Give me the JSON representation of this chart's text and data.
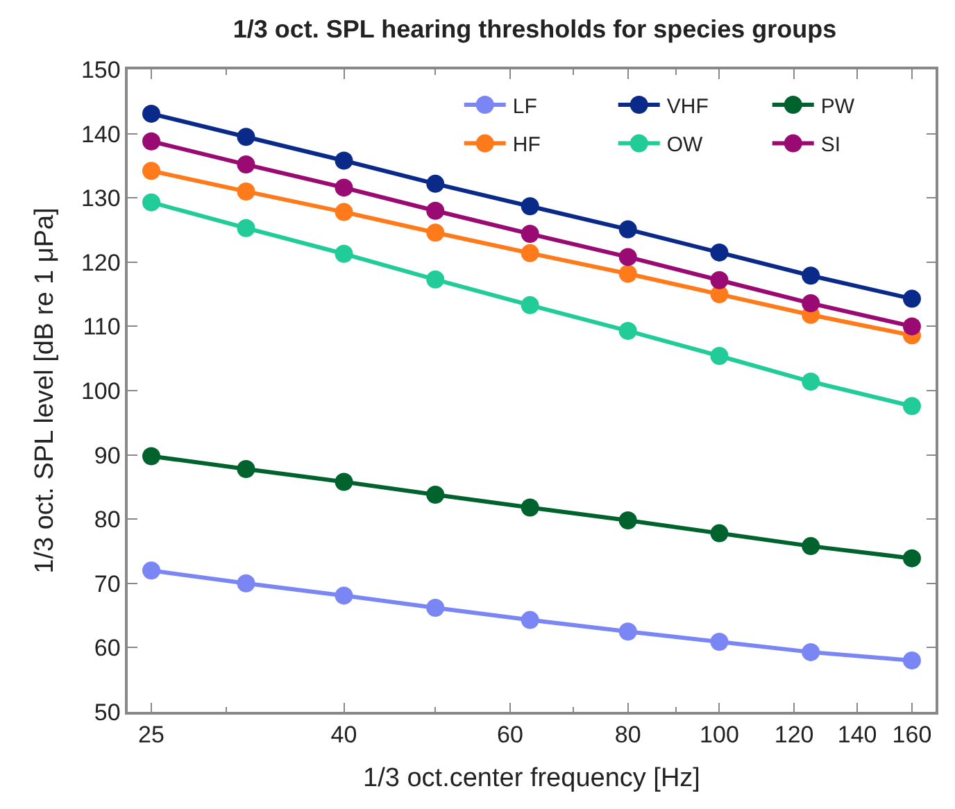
{
  "chart_data": {
    "type": "line",
    "title": "1/3 oct. SPL hearing thresholds for species groups",
    "xlabel": "1/3 oct.center frequency [Hz]",
    "ylabel": "1/3 oct. SPL level [dB re 1 μPa]",
    "x": [
      25,
      31.5,
      40,
      50,
      63,
      80,
      100,
      125,
      160
    ],
    "series": [
      {
        "name": "LF",
        "color": "#7b86f5",
        "values": [
          72,
          70,
          68.1,
          66.2,
          64.3,
          62.5,
          60.9,
          59.3,
          58
        ]
      },
      {
        "name": "VHF",
        "color": "#0a2a8a",
        "values": [
          143.1,
          139.5,
          135.8,
          132.2,
          128.7,
          125.1,
          121.5,
          117.9,
          114.3
        ]
      },
      {
        "name": "PW",
        "color": "#00632e",
        "values": [
          89.8,
          87.8,
          85.8,
          83.8,
          81.8,
          79.8,
          77.8,
          75.8,
          73.9
        ]
      },
      {
        "name": "HF",
        "color": "#ff7a1a",
        "values": [
          134.2,
          131,
          127.8,
          124.6,
          121.4,
          118.2,
          115,
          111.8,
          108.6
        ]
      },
      {
        "name": "OW",
        "color": "#22cc99",
        "values": [
          129.3,
          125.3,
          121.3,
          117.3,
          113.3,
          109.3,
          105.4,
          101.4,
          97.6
        ]
      },
      {
        "name": "SI",
        "color": "#9a0a73",
        "values": [
          138.8,
          135.2,
          131.6,
          128,
          124.4,
          120.8,
          117.2,
          113.6,
          110
        ]
      }
    ],
    "log": "x",
    "xlim": [
      23.6,
      169.5
    ],
    "xticks": [
      25,
      40,
      60,
      80,
      100,
      120,
      140,
      160
    ],
    "ylim": [
      50,
      150
    ],
    "yticks": [
      50,
      60,
      70,
      80,
      90,
      100,
      110,
      120,
      130,
      140,
      150
    ],
    "legend": "top right",
    "marker": "circle",
    "line_style": "solid"
  }
}
